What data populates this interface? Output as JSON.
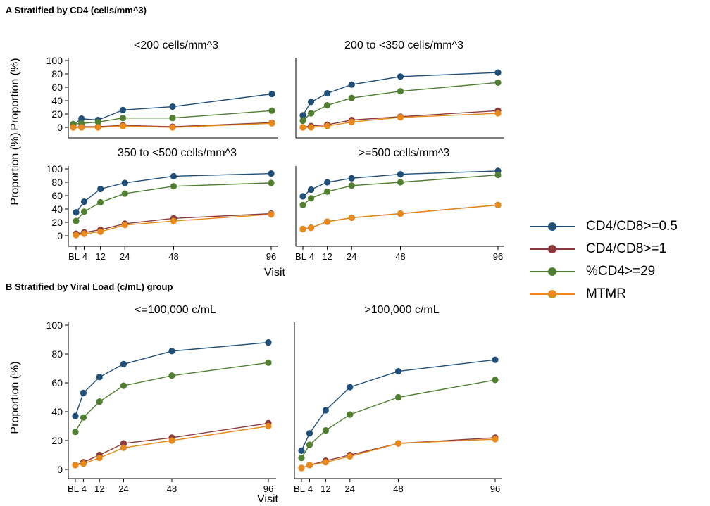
{
  "section_a_title": "A Stratified by CD4 (cells/mm^3)",
  "section_b_title": "B Stratified by Viral Load (c/mL) group",
  "colors": {
    "CD4/CD8>=0.5": "#1f4e79",
    "CD4/CD8>=1": "#8b3a3a",
    "%CD4>=29": "#4f7f2f",
    "MTMR": "#e8891a"
  },
  "legend": [
    "CD4/CD8>=0.5",
    "CD4/CD8>=1",
    "%CD4>=29",
    "MTMR"
  ],
  "chart_data": [
    {
      "type": "line",
      "title": "<200 cells/mm^3",
      "x": [
        0,
        4,
        12,
        24,
        48,
        96
      ],
      "xticks": [
        "BL",
        "4",
        "12",
        "24",
        "48",
        "96"
      ],
      "ylabel": "Proportion (%)",
      "ylim": [
        0,
        100
      ],
      "yticks": [
        0,
        20,
        40,
        60,
        80,
        100
      ],
      "series": [
        {
          "name": "CD4/CD8>=0.5",
          "values": [
            4,
            13,
            11,
            26,
            31,
            50
          ]
        },
        {
          "name": "CD4/CD8>=1",
          "values": [
            0,
            1,
            1,
            3,
            1,
            7
          ]
        },
        {
          "name": "%CD4>=29",
          "values": [
            5,
            6,
            8,
            14,
            14,
            25
          ]
        },
        {
          "name": "MTMR",
          "values": [
            0,
            0,
            0,
            2,
            0,
            6
          ]
        }
      ]
    },
    {
      "type": "line",
      "title": "200 to <350 cells/mm^3",
      "x": [
        0,
        4,
        12,
        24,
        48,
        96
      ],
      "xticks": [
        "BL",
        "4",
        "12",
        "24",
        "48",
        "96"
      ],
      "ylim": [
        0,
        100
      ],
      "series": [
        {
          "name": "CD4/CD8>=0.5",
          "values": [
            18,
            38,
            51,
            64,
            76,
            82
          ]
        },
        {
          "name": "CD4/CD8>=1",
          "values": [
            0,
            2,
            4,
            11,
            16,
            25
          ]
        },
        {
          "name": "%CD4>=29",
          "values": [
            10,
            21,
            33,
            44,
            54,
            67
          ]
        },
        {
          "name": "MTMR",
          "values": [
            0,
            0,
            2,
            8,
            15,
            21
          ]
        }
      ]
    },
    {
      "type": "line",
      "title": "350 to <500 cells/mm^3",
      "x": [
        0,
        4,
        12,
        24,
        48,
        96
      ],
      "xticks": [
        "BL",
        "4",
        "12",
        "24",
        "48",
        "96"
      ],
      "ylabel": "Proportion (%)",
      "xlabel": "Visit",
      "ylim": [
        0,
        100
      ],
      "yticks": [
        0,
        20,
        40,
        60,
        80,
        100
      ],
      "series": [
        {
          "name": "CD4/CD8>=0.5",
          "values": [
            35,
            51,
            70,
            79,
            89,
            93
          ]
        },
        {
          "name": "CD4/CD8>=1",
          "values": [
            3,
            5,
            9,
            18,
            26,
            33
          ]
        },
        {
          "name": "%CD4>=29",
          "values": [
            22,
            36,
            50,
            63,
            74,
            79
          ]
        },
        {
          "name": "MTMR",
          "values": [
            1,
            3,
            6,
            16,
            22,
            32
          ]
        }
      ]
    },
    {
      "type": "line",
      "title": ">=500 cells/mm^3",
      "x": [
        0,
        4,
        12,
        24,
        48,
        96
      ],
      "xticks": [
        "BL",
        "4",
        "12",
        "24",
        "48",
        "96"
      ],
      "xlabel": "Visit",
      "ylim": [
        0,
        100
      ],
      "series": [
        {
          "name": "CD4/CD8>=0.5",
          "values": [
            59,
            69,
            80,
            86,
            92,
            97
          ]
        },
        {
          "name": "CD4/CD8>=1",
          "values": [
            10,
            12,
            21,
            27,
            33,
            46
          ]
        },
        {
          "name": "%CD4>=29",
          "values": [
            46,
            56,
            66,
            75,
            80,
            91
          ]
        },
        {
          "name": "MTMR",
          "values": [
            10,
            12,
            21,
            27,
            33,
            46
          ]
        }
      ]
    },
    {
      "type": "line",
      "title": "<=100,000 c/mL",
      "x": [
        0,
        4,
        12,
        24,
        48,
        96
      ],
      "xticks": [
        "BL",
        "4",
        "12",
        "24",
        "48",
        "96"
      ],
      "ylabel": "Proportion (%)",
      "ylim": [
        0,
        100
      ],
      "yticks": [
        0,
        20,
        40,
        60,
        80,
        100
      ],
      "series": [
        {
          "name": "CD4/CD8>=0.5",
          "values": [
            37,
            53,
            64,
            73,
            82,
            88
          ]
        },
        {
          "name": "CD4/CD8>=1",
          "values": [
            3,
            5,
            10,
            18,
            22,
            32
          ]
        },
        {
          "name": "%CD4>=29",
          "values": [
            26,
            36,
            47,
            58,
            65,
            74
          ]
        },
        {
          "name": "MTMR",
          "values": [
            3,
            4,
            8,
            15,
            20,
            30
          ]
        }
      ]
    },
    {
      "type": "line",
      "title": ">100,000 c/mL",
      "x": [
        0,
        4,
        12,
        24,
        48,
        96
      ],
      "xticks": [
        "BL",
        "4",
        "12",
        "24",
        "48",
        "96"
      ],
      "xlabel": "Visit",
      "ylim": [
        0,
        100
      ],
      "series": [
        {
          "name": "CD4/CD8>=0.5",
          "values": [
            13,
            25,
            41,
            57,
            68,
            76
          ]
        },
        {
          "name": "CD4/CD8>=1",
          "values": [
            1,
            3,
            6,
            10,
            18,
            22
          ]
        },
        {
          "name": "%CD4>=29",
          "values": [
            8,
            17,
            27,
            38,
            50,
            62
          ]
        },
        {
          "name": "MTMR",
          "values": [
            1,
            3,
            5,
            9,
            18,
            21
          ]
        }
      ]
    }
  ]
}
